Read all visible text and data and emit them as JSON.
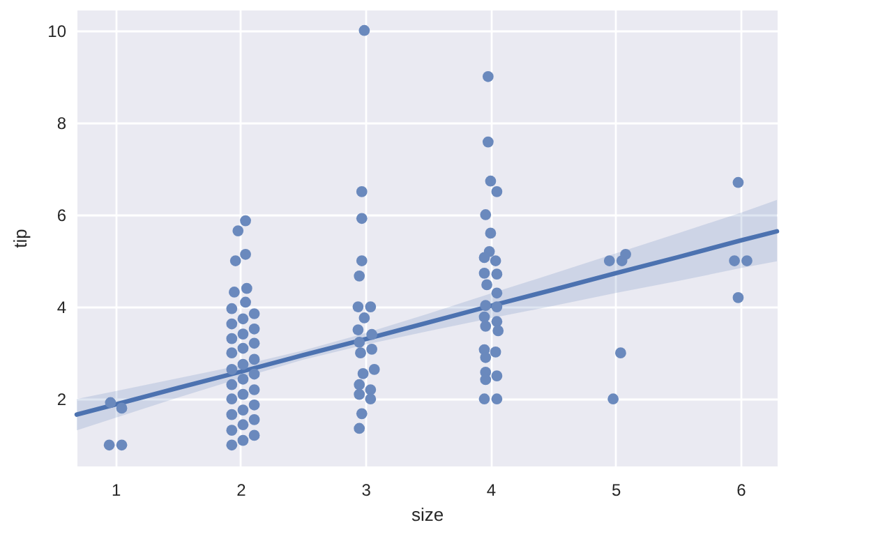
{
  "chart_data": {
    "type": "scatter",
    "xlabel": "size",
    "ylabel": "tip",
    "xlim": [
      0.69,
      6.29
    ],
    "ylim": [
      0.55,
      10.45
    ],
    "xticks": [
      1,
      2,
      3,
      4,
      5,
      6
    ],
    "yticks": [
      2,
      4,
      6,
      8,
      10
    ],
    "grid": true,
    "series": [
      {
        "color": "#6a89bd",
        "marker": "circle",
        "x": [
          0.96,
          1.05,
          0.95,
          1.05,
          1.93,
          2.02,
          2.11,
          1.93,
          2.02,
          2.11,
          1.93,
          2.02,
          2.11,
          1.93,
          2.02,
          2.11,
          1.93,
          2.02,
          2.11,
          1.93,
          2.02,
          2.11,
          1.93,
          2.02,
          2.11,
          1.93,
          2.02,
          2.11,
          1.93,
          2.02,
          2.11,
          1.93,
          2.04,
          1.95,
          2.05,
          1.96,
          2.04,
          1.98,
          2.04,
          2.99,
          2.97,
          2.97,
          2.97,
          2.95,
          2.94,
          3.04,
          2.99,
          2.94,
          3.05,
          2.95,
          3.05,
          2.96,
          3.07,
          2.98,
          2.95,
          3.04,
          2.95,
          3.04,
          2.97,
          2.95,
          3.98,
          3.98,
          4.0,
          4.05,
          3.96,
          4.0,
          3.99,
          3.95,
          4.04,
          3.95,
          4.05,
          3.97,
          4.05,
          3.96,
          4.05,
          3.95,
          4.05,
          3.96,
          4.06,
          3.95,
          4.04,
          3.96,
          3.96,
          4.05,
          3.96,
          3.95,
          4.05,
          4.95,
          5.05,
          5.08,
          5.04,
          4.98,
          5.98,
          5.95,
          6.05,
          5.98
        ],
        "values": [
          1.92,
          1.8,
          1.0,
          1.0,
          1.0,
          1.1,
          1.21,
          1.32,
          1.44,
          1.55,
          1.66,
          1.76,
          1.87,
          2.0,
          2.1,
          2.2,
          2.31,
          2.43,
          2.54,
          2.64,
          2.75,
          2.86,
          3.0,
          3.1,
          3.21,
          3.31,
          3.41,
          3.52,
          3.63,
          3.74,
          3.85,
          3.96,
          4.1,
          4.32,
          4.4,
          5.0,
          5.14,
          5.65,
          5.87,
          10.0,
          6.5,
          5.92,
          5.0,
          4.67,
          4.0,
          4.0,
          3.76,
          3.5,
          3.4,
          3.23,
          3.08,
          3.0,
          2.64,
          2.55,
          2.31,
          2.2,
          2.1,
          2.0,
          1.68,
          1.36,
          9.0,
          7.58,
          6.73,
          6.5,
          6.0,
          5.6,
          5.2,
          5.07,
          5.0,
          4.73,
          4.71,
          4.48,
          4.3,
          4.03,
          4.0,
          3.78,
          3.68,
          3.58,
          3.48,
          3.07,
          3.02,
          2.9,
          2.58,
          2.5,
          2.42,
          2.0,
          2.0,
          5.0,
          5.0,
          5.14,
          3.0,
          2.0,
          6.7,
          5.0,
          5.0,
          4.2
        ]
      },
      {
        "type": "line",
        "color": "#4c72b0",
        "x": [
          0.69,
          1,
          1.5,
          2,
          2.5,
          3,
          3.5,
          4,
          4.5,
          5,
          5.5,
          6,
          6.29
        ],
        "values": [
          1.66,
          1.88,
          2.24,
          2.59,
          2.95,
          3.3,
          3.66,
          4.02,
          4.37,
          4.73,
          5.08,
          5.44,
          5.64
        ],
        "lower": [
          1.32,
          1.59,
          2.03,
          2.45,
          2.85,
          3.18,
          3.47,
          3.75,
          4.02,
          4.3,
          4.56,
          4.84,
          4.99
        ],
        "upper": [
          2.0,
          2.17,
          2.45,
          2.73,
          3.05,
          3.43,
          3.85,
          4.29,
          4.72,
          5.16,
          5.6,
          6.04,
          6.32
        ]
      }
    ]
  }
}
